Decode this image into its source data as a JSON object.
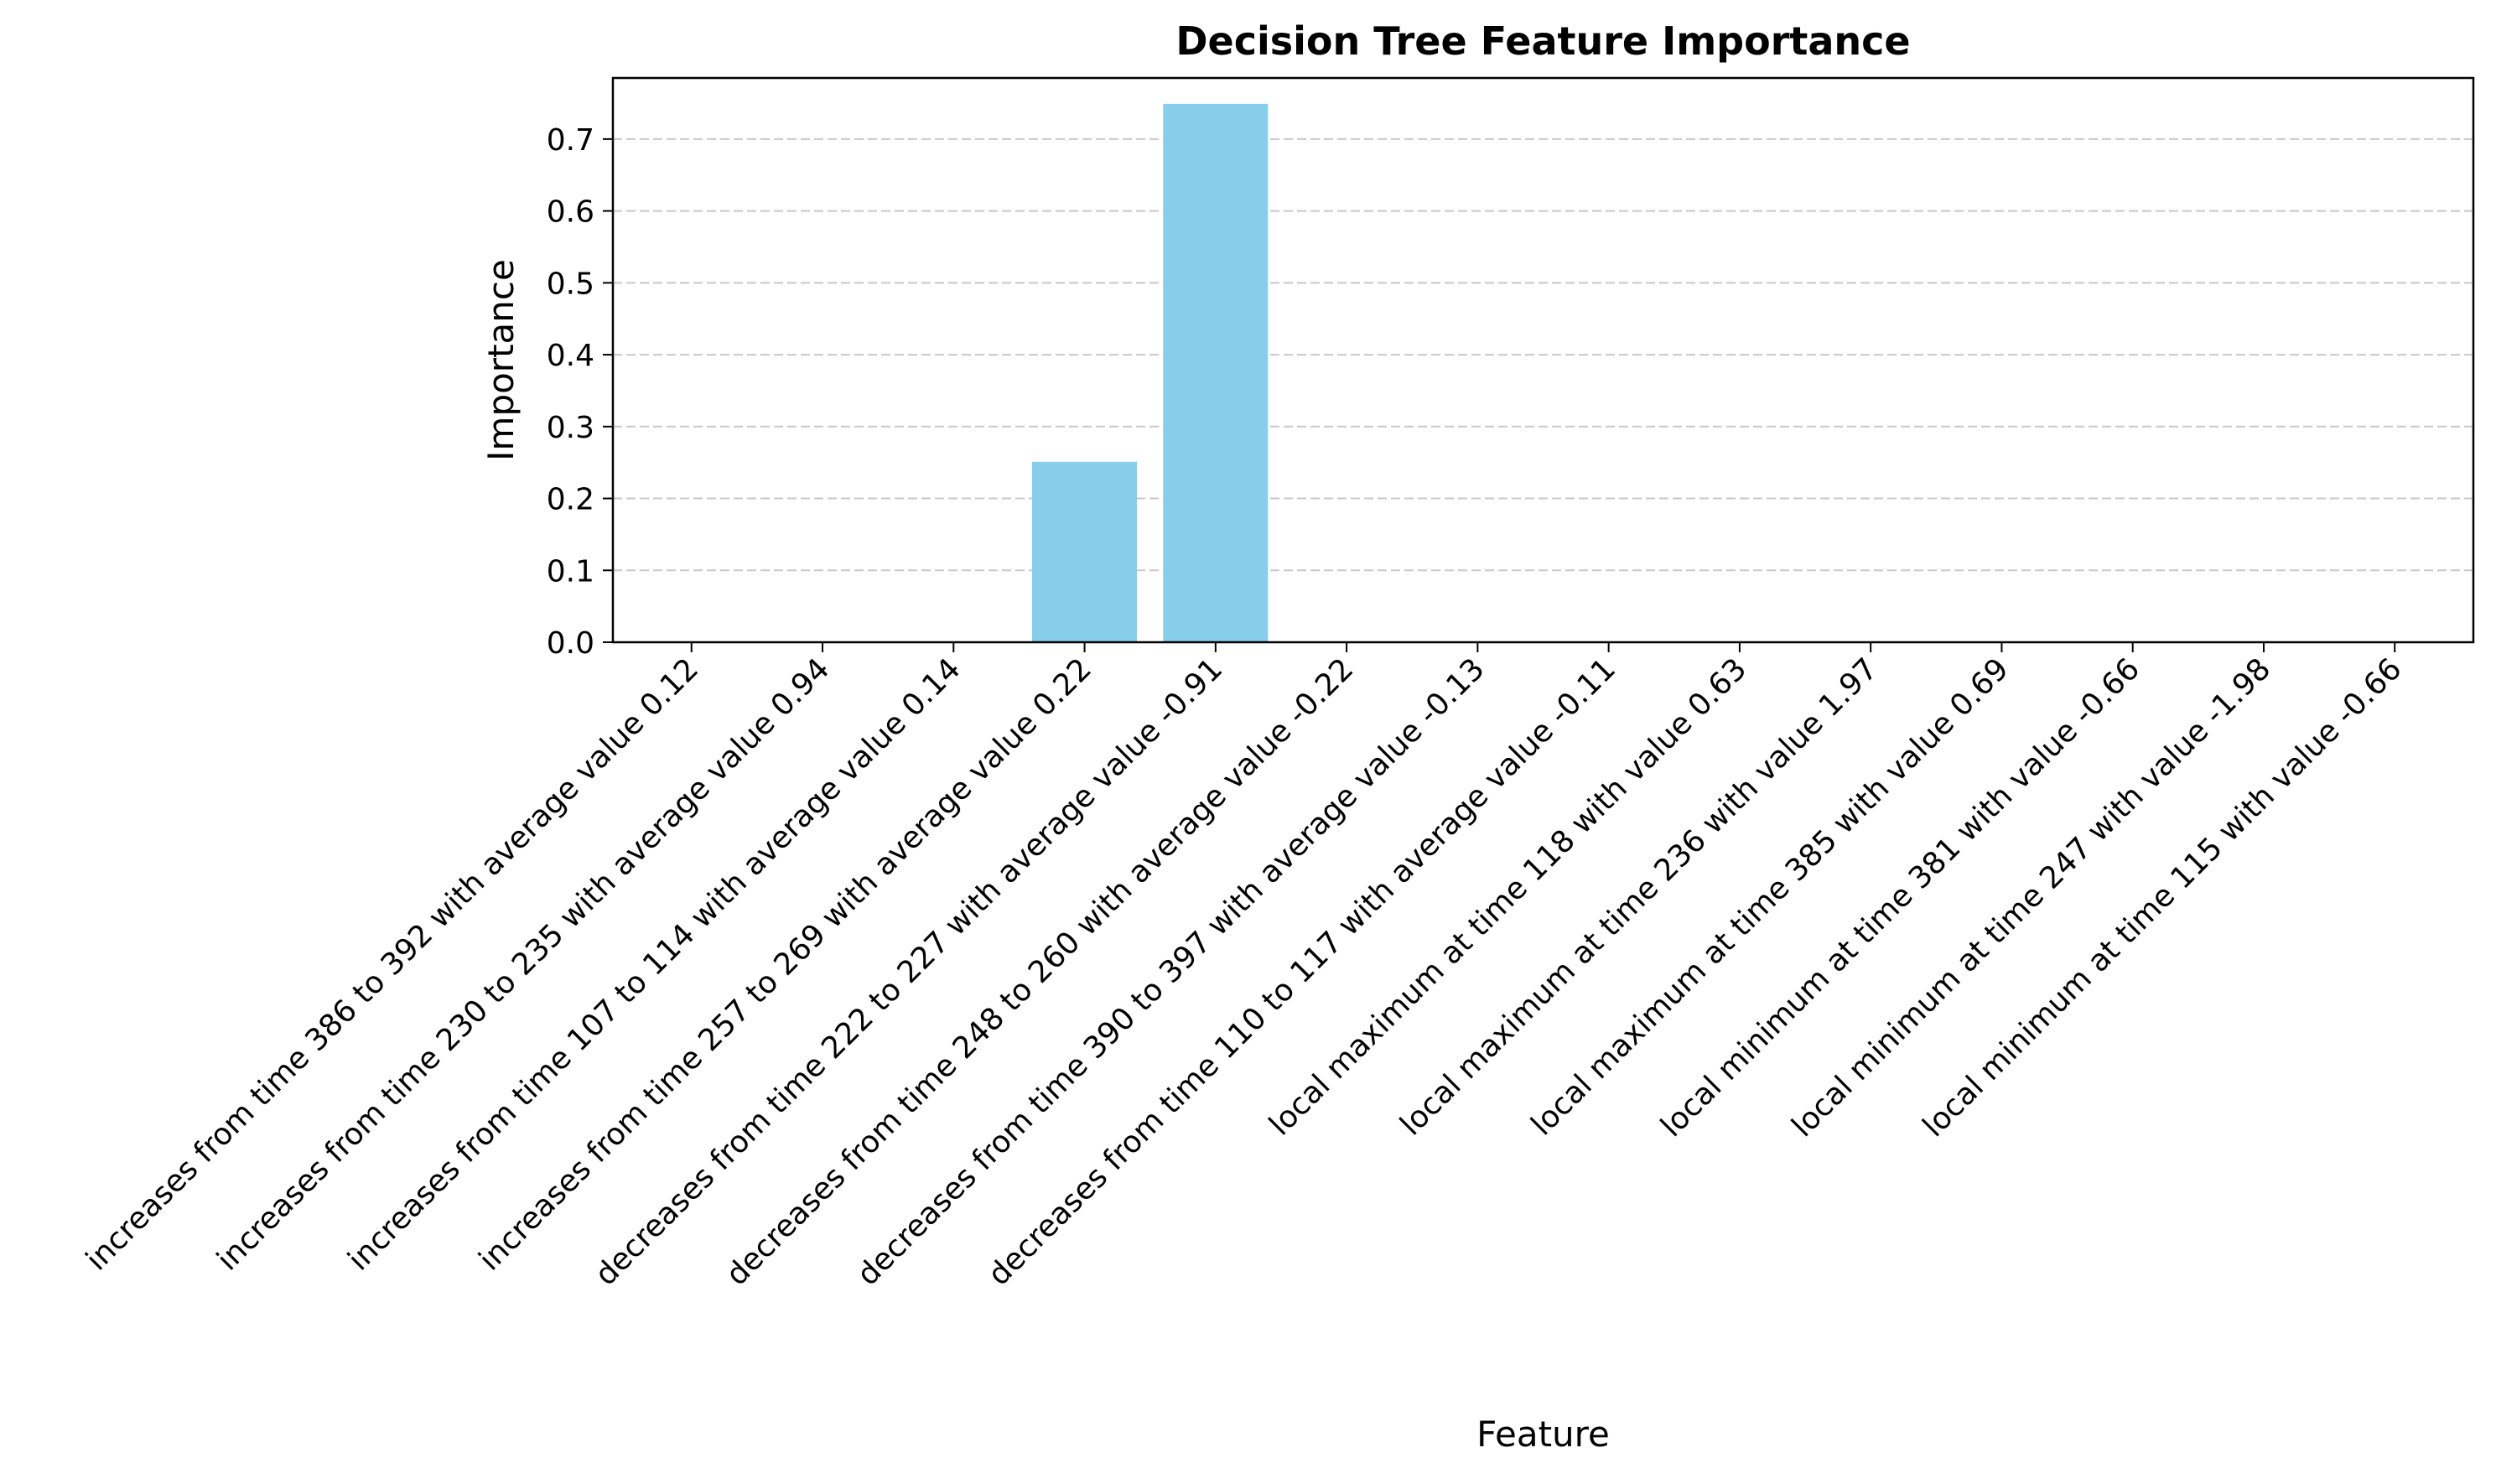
{
  "chart_data": {
    "type": "bar",
    "title": "Decision Tree Feature Importance",
    "xlabel": "Feature",
    "ylabel": "Importance",
    "ylim": [
      0,
      0.785
    ],
    "yticks": [
      "0.0",
      "0.1",
      "0.2",
      "0.3",
      "0.4",
      "0.5",
      "0.6",
      "0.7"
    ],
    "grid": "y-dashed",
    "bar_color": "#87ceeb",
    "categories": [
      "increases from time 386 to 392 with average value 0.12",
      "increases from time 230 to 235 with average value 0.94",
      "increases from time 107 to 114 with average value 0.14",
      "increases from time 257 to 269 with average value 0.22",
      "decreases from time 222 to 227 with average value -0.91",
      "decreases from time 248 to 260 with average value -0.22",
      "decreases from time 390 to 397 with average value -0.13",
      "decreases from time 110 to 117 with average value -0.11",
      "local maximum at time 118 with value 0.63",
      "local maximum at time 236 with value 1.97",
      "local maximum at time 385 with value 0.69",
      "local minimum at time 381 with value -0.66",
      "local minimum at time 247 with value -1.98",
      "local minimum at time 115 with value -0.66"
    ],
    "values": [
      0,
      0,
      0,
      0.251,
      0.749,
      0,
      0,
      0,
      0,
      0,
      0,
      0,
      0,
      0
    ]
  }
}
